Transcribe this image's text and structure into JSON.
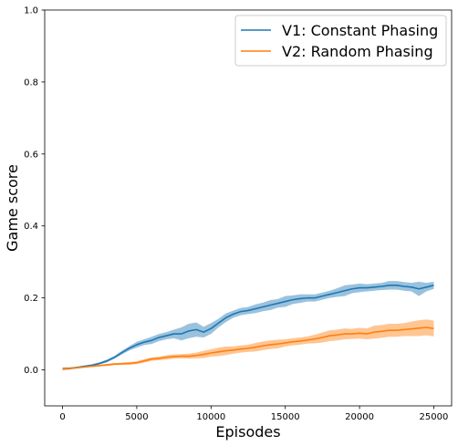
{
  "chart_data": {
    "type": "line",
    "xlabel": "Episodes",
    "ylabel": "Game score",
    "xlim": [
      -1200,
      26200
    ],
    "ylim": [
      -0.1,
      1.0
    ],
    "xticks": [
      0,
      5000,
      10000,
      15000,
      20000,
      25000
    ],
    "yticks": [
      0.0,
      0.2,
      0.4,
      0.6,
      0.8,
      1.0
    ],
    "grid": false,
    "legend_position": "top-right",
    "series": [
      {
        "name": "V1: Constant Phasing",
        "color": "#1f77b4",
        "band_color": "#1f77b4",
        "x": [
          0,
          500,
          1000,
          1500,
          2000,
          2500,
          3000,
          3500,
          4000,
          4500,
          5000,
          5500,
          6000,
          6500,
          7000,
          7500,
          8000,
          8500,
          9000,
          9500,
          10000,
          10500,
          11000,
          11500,
          12000,
          12500,
          13000,
          13500,
          14000,
          14500,
          15000,
          15500,
          16000,
          16500,
          17000,
          17500,
          18000,
          18500,
          19000,
          19500,
          20000,
          20500,
          21000,
          21500,
          22000,
          22500,
          23000,
          23500,
          24000,
          24500,
          25000
        ],
        "y": [
          0.003,
          0.004,
          0.007,
          0.01,
          0.013,
          0.018,
          0.025,
          0.035,
          0.048,
          0.06,
          0.07,
          0.077,
          0.082,
          0.09,
          0.095,
          0.1,
          0.1,
          0.108,
          0.112,
          0.105,
          0.115,
          0.13,
          0.145,
          0.155,
          0.162,
          0.165,
          0.17,
          0.175,
          0.18,
          0.185,
          0.19,
          0.195,
          0.198,
          0.2,
          0.2,
          0.205,
          0.21,
          0.215,
          0.22,
          0.225,
          0.228,
          0.228,
          0.23,
          0.232,
          0.235,
          0.235,
          0.232,
          0.23,
          0.225,
          0.23,
          0.235
        ],
        "band": [
          0.004,
          0.003,
          0.002,
          0.002,
          0.003,
          0.003,
          0.004,
          0.004,
          0.005,
          0.006,
          0.008,
          0.008,
          0.01,
          0.01,
          0.01,
          0.012,
          0.018,
          0.02,
          0.02,
          0.015,
          0.015,
          0.012,
          0.012,
          0.01,
          0.01,
          0.01,
          0.012,
          0.012,
          0.014,
          0.012,
          0.015,
          0.012,
          0.012,
          0.01,
          0.01,
          0.01,
          0.01,
          0.012,
          0.015,
          0.012,
          0.012,
          0.01,
          0.01,
          0.01,
          0.012,
          0.012,
          0.012,
          0.012,
          0.02,
          0.012,
          0.01
        ]
      },
      {
        "name": "V2: Random Phasing",
        "color": "#ff7f0e",
        "band_color": "#ff7f0e",
        "x": [
          0,
          500,
          1000,
          1500,
          2000,
          2500,
          3000,
          3500,
          4000,
          4500,
          5000,
          5500,
          6000,
          6500,
          7000,
          7500,
          8000,
          8500,
          9000,
          9500,
          10000,
          10500,
          11000,
          11500,
          12000,
          12500,
          13000,
          13500,
          14000,
          14500,
          15000,
          15500,
          16000,
          16500,
          17000,
          17500,
          18000,
          18500,
          19000,
          19500,
          20000,
          20500,
          21000,
          21500,
          22000,
          22500,
          23000,
          23500,
          24000,
          24500,
          25000
        ],
        "y": [
          0.003,
          0.004,
          0.006,
          0.008,
          0.01,
          0.012,
          0.014,
          0.016,
          0.017,
          0.018,
          0.02,
          0.025,
          0.03,
          0.032,
          0.035,
          0.037,
          0.038,
          0.038,
          0.04,
          0.043,
          0.047,
          0.05,
          0.053,
          0.055,
          0.058,
          0.06,
          0.063,
          0.067,
          0.07,
          0.072,
          0.075,
          0.078,
          0.08,
          0.083,
          0.086,
          0.09,
          0.095,
          0.097,
          0.1,
          0.1,
          0.102,
          0.1,
          0.105,
          0.107,
          0.11,
          0.11,
          0.112,
          0.114,
          0.116,
          0.118,
          0.115
        ],
        "band": [
          0.003,
          0.003,
          0.002,
          0.002,
          0.002,
          0.002,
          0.003,
          0.003,
          0.003,
          0.004,
          0.004,
          0.005,
          0.005,
          0.005,
          0.006,
          0.006,
          0.006,
          0.007,
          0.008,
          0.01,
          0.01,
          0.012,
          0.012,
          0.01,
          0.01,
          0.01,
          0.012,
          0.012,
          0.012,
          0.012,
          0.01,
          0.01,
          0.01,
          0.01,
          0.012,
          0.014,
          0.015,
          0.015,
          0.015,
          0.014,
          0.015,
          0.015,
          0.018,
          0.018,
          0.018,
          0.018,
          0.018,
          0.02,
          0.022,
          0.022,
          0.022
        ]
      }
    ]
  }
}
